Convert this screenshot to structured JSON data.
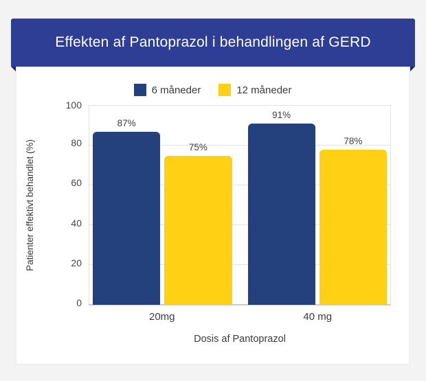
{
  "banner": {
    "title": "Effekten af Pantoprazol i behandlingen af GERD"
  },
  "colors": {
    "banner_blue": "#2d3e94",
    "banner_fold": "#1c2a60",
    "background_gray": "#f3f3f4",
    "card_white": "#ffffff",
    "series_blue": "#25417d",
    "series_yellow": "#ffd013",
    "text_dark": "#3b3b3b",
    "grid_gray": "#e2e2e2"
  },
  "chart_data": {
    "type": "bar",
    "title": "Effekten af Pantoprazol i behandlingen af GERD",
    "categories": [
      "20mg",
      "40 mg"
    ],
    "series": [
      {
        "name": "6 måneder",
        "color": "#25417d",
        "values": [
          87,
          91
        ]
      },
      {
        "name": "12 måneder",
        "color": "#ffd013",
        "values": [
          75,
          78
        ]
      }
    ],
    "bar_labels": [
      [
        "87%",
        "75%"
      ],
      [
        "91%",
        "78%"
      ]
    ],
    "xlabel": "Dosis af Pantoprazol",
    "ylabel": "Patienter effektivt behandlet (%)",
    "ylim": [
      0,
      100
    ],
    "yticks": [
      0,
      20,
      40,
      60,
      80,
      100
    ],
    "grid": true,
    "legend_position": "top"
  }
}
